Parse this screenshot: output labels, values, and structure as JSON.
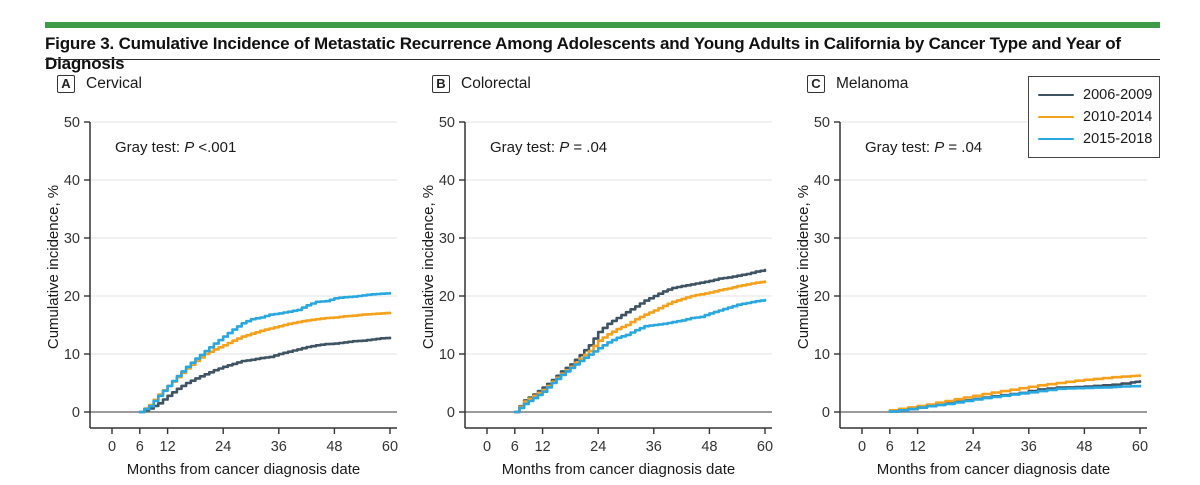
{
  "header": {
    "title": "Figure 3. Cumulative Incidence of Metastatic Recurrence Among Adolescents and Young Adults in California by Cancer Type and Year of Diagnosis",
    "accent_color": "#3E9B47"
  },
  "legend": {
    "position": "top-right",
    "items": [
      {
        "label": "2006-2009",
        "color": "#3E5463"
      },
      {
        "label": "2010-2014",
        "color": "#F5A11C"
      },
      {
        "label": "2015-2018",
        "color": "#29A8E0"
      }
    ]
  },
  "axes_shared": {
    "ylabel": "Cumulative incidence, %",
    "xlabel": "Months from cancer diagnosis date",
    "yticks": [
      0,
      10,
      20,
      30,
      40,
      50
    ],
    "xticks": [
      0,
      6,
      12,
      24,
      36,
      48,
      60
    ],
    "ylim": [
      0,
      50
    ],
    "xlim": [
      0,
      60
    ],
    "grid": "horizontal-light"
  },
  "chart_data": [
    {
      "type": "line",
      "panel_letter": "A",
      "title": "Cervical",
      "annotation": {
        "prefix": "Gray test: ",
        "p": "P",
        "value": " <.001"
      },
      "series": [
        {
          "name": "2006-2009",
          "color": "#3E5463",
          "points": [
            [
              6,
              0
            ],
            [
              8,
              0.6
            ],
            [
              10,
              1.5
            ],
            [
              12,
              2.8
            ],
            [
              14,
              4.0
            ],
            [
              16,
              5.0
            ],
            [
              18,
              5.8
            ],
            [
              20,
              6.5
            ],
            [
              22,
              7.2
            ],
            [
              24,
              7.8
            ],
            [
              26,
              8.3
            ],
            [
              28,
              8.8
            ],
            [
              30,
              9.0
            ],
            [
              32,
              9.3
            ],
            [
              34,
              9.5
            ],
            [
              36,
              10.0
            ],
            [
              38,
              10.4
            ],
            [
              40,
              10.8
            ],
            [
              42,
              11.2
            ],
            [
              44,
              11.5
            ],
            [
              46,
              11.7
            ],
            [
              48,
              11.8
            ],
            [
              50,
              12.0
            ],
            [
              52,
              12.2
            ],
            [
              54,
              12.3
            ],
            [
              56,
              12.5
            ],
            [
              58,
              12.7
            ],
            [
              60,
              12.8
            ]
          ]
        },
        {
          "name": "2010-2014",
          "color": "#F5A11C",
          "points": [
            [
              6,
              0
            ],
            [
              8,
              1.2
            ],
            [
              10,
              3.0
            ],
            [
              12,
              4.5
            ],
            [
              14,
              6.0
            ],
            [
              16,
              7.5
            ],
            [
              18,
              8.8
            ],
            [
              20,
              10.0
            ],
            [
              22,
              10.8
            ],
            [
              24,
              11.5
            ],
            [
              26,
              12.3
            ],
            [
              28,
              13.0
            ],
            [
              30,
              13.5
            ],
            [
              32,
              14.0
            ],
            [
              34,
              14.4
            ],
            [
              36,
              14.8
            ],
            [
              38,
              15.2
            ],
            [
              40,
              15.5
            ],
            [
              42,
              15.8
            ],
            [
              44,
              16.0
            ],
            [
              46,
              16.2
            ],
            [
              48,
              16.3
            ],
            [
              50,
              16.5
            ],
            [
              52,
              16.6
            ],
            [
              54,
              16.8
            ],
            [
              56,
              16.9
            ],
            [
              58,
              17.0
            ],
            [
              60,
              17.1
            ]
          ]
        },
        {
          "name": "2015-2018",
          "color": "#29A8E0",
          "points": [
            [
              6,
              0
            ],
            [
              8,
              1.0
            ],
            [
              10,
              2.8
            ],
            [
              12,
              4.5
            ],
            [
              14,
              6.2
            ],
            [
              16,
              7.8
            ],
            [
              18,
              9.2
            ],
            [
              20,
              10.5
            ],
            [
              22,
              11.8
            ],
            [
              24,
              13.0
            ],
            [
              26,
              14.2
            ],
            [
              28,
              15.3
            ],
            [
              30,
              16.0
            ],
            [
              32,
              16.3
            ],
            [
              34,
              16.8
            ],
            [
              36,
              17.0
            ],
            [
              38,
              17.3
            ],
            [
              40,
              17.6
            ],
            [
              42,
              18.4
            ],
            [
              44,
              19.0
            ],
            [
              46,
              19.1
            ],
            [
              48,
              19.6
            ],
            [
              50,
              19.8
            ],
            [
              52,
              19.9
            ],
            [
              54,
              20.1
            ],
            [
              56,
              20.3
            ],
            [
              58,
              20.4
            ],
            [
              60,
              20.5
            ]
          ]
        }
      ]
    },
    {
      "type": "line",
      "panel_letter": "B",
      "title": "Colorectal",
      "annotation": {
        "prefix": "Gray test: ",
        "p": "P",
        "value": " = .04"
      },
      "series": [
        {
          "name": "2006-2009",
          "color": "#3E5463",
          "points": [
            [
              6,
              0
            ],
            [
              8,
              2.0
            ],
            [
              10,
              3.0
            ],
            [
              12,
              4.2
            ],
            [
              14,
              5.5
            ],
            [
              16,
              7.0
            ],
            [
              18,
              8.2
            ],
            [
              20,
              9.8
            ],
            [
              22,
              11.5
            ],
            [
              24,
              13.8
            ],
            [
              26,
              15.2
            ],
            [
              28,
              16.2
            ],
            [
              30,
              17.2
            ],
            [
              32,
              18.2
            ],
            [
              34,
              19.2
            ],
            [
              36,
              20.0
            ],
            [
              38,
              20.8
            ],
            [
              40,
              21.4
            ],
            [
              42,
              21.7
            ],
            [
              44,
              22.0
            ],
            [
              46,
              22.3
            ],
            [
              48,
              22.6
            ],
            [
              50,
              23.0
            ],
            [
              52,
              23.2
            ],
            [
              54,
              23.5
            ],
            [
              56,
              23.8
            ],
            [
              58,
              24.2
            ],
            [
              60,
              24.5
            ]
          ]
        },
        {
          "name": "2010-2014",
          "color": "#F5A11C",
          "points": [
            [
              6,
              0
            ],
            [
              8,
              1.8
            ],
            [
              10,
              2.8
            ],
            [
              12,
              3.8
            ],
            [
              14,
              5.2
            ],
            [
              16,
              6.6
            ],
            [
              18,
              7.8
            ],
            [
              20,
              9.2
            ],
            [
              22,
              10.5
            ],
            [
              24,
              12.3
            ],
            [
              26,
              13.4
            ],
            [
              28,
              14.3
            ],
            [
              30,
              15.0
            ],
            [
              32,
              16.0
            ],
            [
              34,
              16.8
            ],
            [
              36,
              17.5
            ],
            [
              38,
              18.3
            ],
            [
              40,
              19.0
            ],
            [
              42,
              19.5
            ],
            [
              44,
              20.0
            ],
            [
              46,
              20.3
            ],
            [
              48,
              20.6
            ],
            [
              50,
              21.0
            ],
            [
              52,
              21.3
            ],
            [
              54,
              21.7
            ],
            [
              56,
              22.0
            ],
            [
              58,
              22.3
            ],
            [
              60,
              22.5
            ]
          ]
        },
        {
          "name": "2015-2018",
          "color": "#29A8E0",
          "points": [
            [
              6,
              0
            ],
            [
              8,
              1.4
            ],
            [
              10,
              2.4
            ],
            [
              12,
              3.5
            ],
            [
              14,
              5.0
            ],
            [
              16,
              6.4
            ],
            [
              18,
              7.6
            ],
            [
              20,
              8.8
            ],
            [
              22,
              9.9
            ],
            [
              24,
              11.0
            ],
            [
              26,
              12.0
            ],
            [
              28,
              12.8
            ],
            [
              30,
              13.3
            ],
            [
              32,
              14.1
            ],
            [
              34,
              14.8
            ],
            [
              36,
              15.0
            ],
            [
              38,
              15.2
            ],
            [
              40,
              15.5
            ],
            [
              42,
              15.8
            ],
            [
              44,
              16.2
            ],
            [
              46,
              16.4
            ],
            [
              48,
              17.0
            ],
            [
              50,
              17.5
            ],
            [
              52,
              18.0
            ],
            [
              54,
              18.5
            ],
            [
              56,
              18.8
            ],
            [
              58,
              19.1
            ],
            [
              60,
              19.3
            ]
          ]
        }
      ]
    },
    {
      "type": "line",
      "panel_letter": "C",
      "title": "Melanoma",
      "annotation": {
        "prefix": "Gray test: ",
        "p": "P",
        "value": " = .04"
      },
      "series": [
        {
          "name": "2006-2009",
          "color": "#3E5463",
          "points": [
            [
              6,
              0.1
            ],
            [
              10,
              0.5
            ],
            [
              14,
              1.0
            ],
            [
              18,
              1.5
            ],
            [
              22,
              2.0
            ],
            [
              26,
              2.5
            ],
            [
              30,
              2.9
            ],
            [
              34,
              3.3
            ],
            [
              38,
              3.9
            ],
            [
              42,
              4.2
            ],
            [
              46,
              4.3
            ],
            [
              50,
              4.5
            ],
            [
              54,
              4.7
            ],
            [
              58,
              5.1
            ],
            [
              60,
              5.3
            ]
          ]
        },
        {
          "name": "2010-2014",
          "color": "#F5A11C",
          "points": [
            [
              6,
              0.3
            ],
            [
              10,
              0.8
            ],
            [
              14,
              1.3
            ],
            [
              18,
              1.9
            ],
            [
              22,
              2.5
            ],
            [
              26,
              3.1
            ],
            [
              30,
              3.6
            ],
            [
              34,
              4.1
            ],
            [
              38,
              4.6
            ],
            [
              42,
              5.0
            ],
            [
              46,
              5.4
            ],
            [
              50,
              5.7
            ],
            [
              54,
              6.0
            ],
            [
              58,
              6.2
            ],
            [
              60,
              6.3
            ]
          ]
        },
        {
          "name": "2015-2018",
          "color": "#29A8E0",
          "points": [
            [
              6,
              0.1
            ],
            [
              10,
              0.5
            ],
            [
              14,
              1.0
            ],
            [
              18,
              1.4
            ],
            [
              22,
              1.9
            ],
            [
              26,
              2.4
            ],
            [
              30,
              2.8
            ],
            [
              34,
              3.2
            ],
            [
              38,
              3.6
            ],
            [
              42,
              4.0
            ],
            [
              46,
              4.1
            ],
            [
              50,
              4.2
            ],
            [
              54,
              4.3
            ],
            [
              56,
              4.4
            ],
            [
              60,
              4.5
            ]
          ]
        }
      ]
    }
  ],
  "style": {
    "grid_color": "#E3E3E3",
    "zero_line_color": "#7A7A7A",
    "axis_color": "#333333",
    "tick_label_color": "#333333"
  }
}
